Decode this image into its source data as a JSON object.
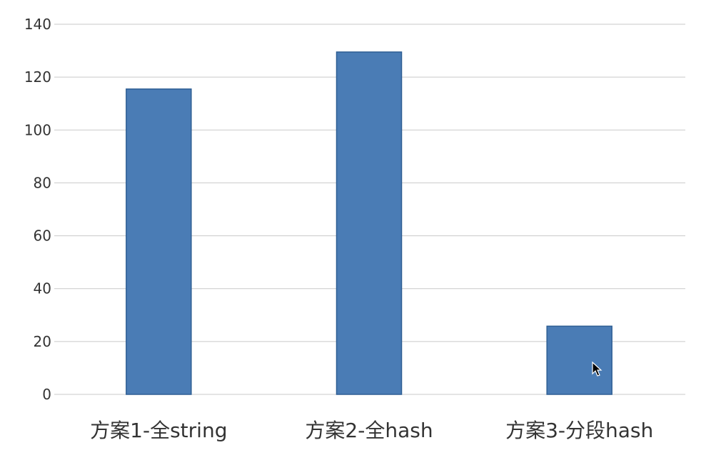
{
  "chart_data": {
    "type": "bar",
    "categories": [
      "方案1-全string",
      "方案2-全hash",
      "方案3-分段hash"
    ],
    "values": [
      115.5,
      129.5,
      25.8
    ],
    "ylim": [
      0,
      140
    ],
    "yticks": [
      0,
      20,
      40,
      60,
      80,
      100,
      120,
      140
    ],
    "grid": true,
    "legend": "none",
    "bar_color": "#4a7cb5",
    "bar_border_color": "#2f5f94"
  }
}
